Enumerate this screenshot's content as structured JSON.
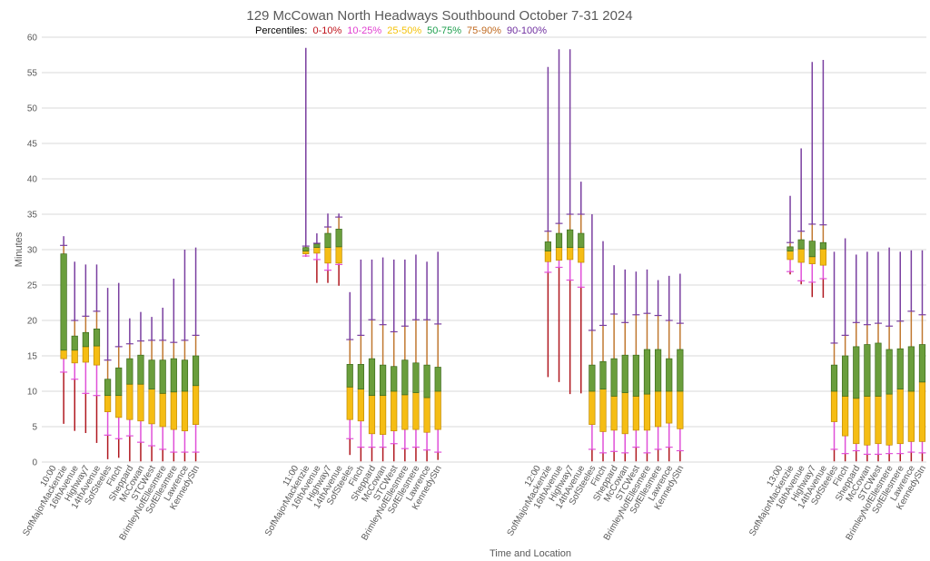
{
  "chart_data": {
    "type": "box",
    "title": "129 McCowan North Headways Southbound October 7-31 2024",
    "xlabel": "Time and Location",
    "ylabel": "Minutes",
    "ylim": [
      0,
      60
    ],
    "yticks": [
      0,
      5,
      10,
      15,
      20,
      25,
      30,
      35,
      40,
      45,
      50,
      55,
      60
    ],
    "grid": true,
    "legend": {
      "prefix": "Percentiles:",
      "placement": "top-center",
      "items": [
        {
          "label": "0-10%",
          "color": "#c0141c"
        },
        {
          "label": "10-25%",
          "color": "#e040d0"
        },
        {
          "label": "25-50%",
          "color": "#f4c20c"
        },
        {
          "label": "50-75%",
          "color": "#20a050"
        },
        {
          "label": "75-90%",
          "color": "#c06a20"
        },
        {
          "label": "90-100%",
          "color": "#7030a0"
        }
      ]
    },
    "colors": {
      "whisker_low": "#b01820",
      "whisker_p10_p25": "#e050d8",
      "box_lower": "#f5bd14",
      "box_lower_border": "#c08a00",
      "box_upper": "#6a9e3c",
      "box_upper_border": "#3c6a1c",
      "whisker_p75_p90": "#c07830",
      "whisker_high": "#7a3fa0",
      "gridline": "#d9d9d9",
      "axis_text": "#595959"
    },
    "stops": [
      "SofMajorMackenzie",
      "16thAvenue",
      "Highway7",
      "14thAvenue",
      "SofSteeles",
      "Finch",
      "Sheppard",
      "McCowan",
      "STCWest",
      "BrimleyNofEllesmere",
      "SofEllesmere",
      "Lawrence",
      "KennedyStn"
    ],
    "series_keys": [
      "min",
      "p10",
      "p25",
      "median",
      "p75",
      "p90",
      "max"
    ],
    "groups": [
      {
        "time": "10:00",
        "boxes": [
          [
            5.4,
            12.7,
            14.6,
            15.8,
            29.4,
            30.6,
            31.9
          ],
          [
            4.4,
            11.7,
            14.0,
            15.8,
            17.8,
            20.0,
            28.3
          ],
          [
            4.1,
            9.7,
            14.1,
            16.3,
            18.3,
            20.6,
            27.9
          ],
          [
            2.7,
            9.4,
            13.7,
            16.4,
            18.8,
            21.3,
            27.9
          ],
          [
            0.4,
            3.8,
            7.1,
            9.4,
            11.7,
            14.4,
            24.6
          ],
          [
            0.6,
            3.3,
            6.3,
            9.4,
            13.3,
            16.3,
            25.3
          ],
          [
            0.1,
            3.7,
            6.0,
            11.0,
            14.6,
            16.7,
            20.3
          ],
          [
            0.1,
            2.8,
            5.8,
            11.0,
            15.1,
            17.1,
            21.2
          ],
          [
            0.1,
            2.3,
            5.4,
            10.3,
            14.4,
            17.2,
            20.5
          ],
          [
            0.1,
            1.8,
            5.0,
            9.7,
            14.4,
            17.2,
            21.8
          ],
          [
            0.1,
            1.4,
            4.6,
            9.9,
            14.6,
            16.9,
            25.9
          ],
          [
            0.1,
            1.4,
            4.4,
            10.0,
            14.4,
            17.2,
            30.0
          ],
          [
            0.1,
            1.4,
            5.3,
            10.8,
            15.0,
            17.9,
            30.3
          ]
        ]
      },
      {
        "time": "11:00",
        "boxes": [
          [
            29.0,
            29.1,
            29.4,
            29.8,
            30.3,
            30.5,
            58.5
          ],
          [
            25.3,
            28.6,
            29.5,
            30.3,
            30.8,
            30.9,
            32.3
          ],
          [
            25.3,
            27.1,
            28.1,
            30.3,
            32.3,
            33.2,
            35.1
          ],
          [
            24.9,
            27.9,
            28.1,
            30.4,
            32.9,
            34.6,
            35.1
          ],
          [
            1.0,
            3.3,
            6.0,
            10.6,
            13.8,
            17.3,
            24.0
          ],
          [
            0.1,
            2.1,
            5.8,
            10.3,
            13.8,
            17.9,
            28.6
          ],
          [
            0.1,
            2.1,
            4.0,
            9.4,
            14.6,
            20.1,
            28.6
          ],
          [
            0.1,
            2.1,
            3.9,
            9.4,
            13.7,
            19.4,
            28.9
          ],
          [
            0.1,
            2.6,
            4.4,
            10.0,
            13.5,
            18.4,
            28.6
          ],
          [
            0.1,
            1.9,
            4.6,
            9.5,
            14.4,
            19.2,
            28.6
          ],
          [
            0.1,
            2.1,
            4.6,
            9.8,
            14.0,
            20.1,
            29.3
          ],
          [
            0.1,
            1.7,
            4.2,
            9.1,
            13.7,
            20.1,
            28.3
          ],
          [
            0.3,
            1.4,
            4.6,
            10.0,
            13.4,
            19.5,
            29.7
          ]
        ]
      },
      {
        "time": "12:00",
        "boxes": [
          [
            12.0,
            26.8,
            28.3,
            29.8,
            31.1,
            32.6,
            55.8
          ],
          [
            11.3,
            27.5,
            28.5,
            30.3,
            32.3,
            33.7,
            58.3
          ],
          [
            9.6,
            25.7,
            28.6,
            30.3,
            32.8,
            35.0,
            58.3
          ],
          [
            9.7,
            24.7,
            28.2,
            30.3,
            32.3,
            35.0,
            39.6
          ],
          [
            0.1,
            1.8,
            5.3,
            10.0,
            13.7,
            18.6,
            35.0
          ],
          [
            0.1,
            1.3,
            4.3,
            10.3,
            14.2,
            19.3,
            31.2
          ],
          [
            0.1,
            1.5,
            4.5,
            9.3,
            14.6,
            20.9,
            27.8
          ],
          [
            0.1,
            1.3,
            4.0,
            9.8,
            15.1,
            19.7,
            27.2
          ],
          [
            0.1,
            2.1,
            4.5,
            9.3,
            15.1,
            20.8,
            26.9
          ],
          [
            0.1,
            1.3,
            4.5,
            9.6,
            15.9,
            21.0,
            27.2
          ],
          [
            0.1,
            1.8,
            5.0,
            10.0,
            15.9,
            20.7,
            25.7
          ],
          [
            0.1,
            2.1,
            5.5,
            10.0,
            14.6,
            20.0,
            26.3
          ],
          [
            0.1,
            1.6,
            4.7,
            10.0,
            15.9,
            19.6,
            26.6
          ]
        ]
      },
      {
        "time": "13:00",
        "boxes": [
          [
            26.5,
            26.9,
            28.6,
            29.8,
            30.4,
            31.0,
            37.6
          ],
          [
            25.1,
            25.6,
            28.2,
            30.1,
            31.4,
            32.6,
            44.3
          ],
          [
            23.3,
            25.4,
            28.0,
            29.0,
            31.2,
            33.6,
            56.5
          ],
          [
            23.2,
            25.9,
            27.8,
            30.1,
            31.0,
            33.5,
            56.8
          ],
          [
            0.1,
            1.8,
            5.7,
            10.0,
            13.7,
            16.8,
            29.7
          ],
          [
            0.1,
            1.2,
            3.7,
            9.3,
            15.0,
            17.9,
            31.6
          ],
          [
            0.1,
            1.6,
            2.6,
            9.0,
            16.3,
            19.7,
            29.3
          ],
          [
            0.1,
            1.1,
            2.4,
            9.3,
            16.6,
            19.4,
            29.7
          ],
          [
            0.1,
            1.1,
            2.6,
            9.3,
            16.8,
            19.6,
            29.7
          ],
          [
            0.1,
            1.2,
            2.4,
            9.6,
            15.9,
            19.2,
            30.3
          ],
          [
            0.1,
            1.2,
            2.6,
            10.3,
            16.0,
            19.9,
            29.7
          ],
          [
            0.1,
            1.4,
            2.9,
            10.0,
            16.3,
            21.3,
            29.9
          ],
          [
            0.1,
            1.3,
            2.9,
            11.3,
            16.6,
            20.8,
            29.9
          ]
        ]
      }
    ]
  }
}
